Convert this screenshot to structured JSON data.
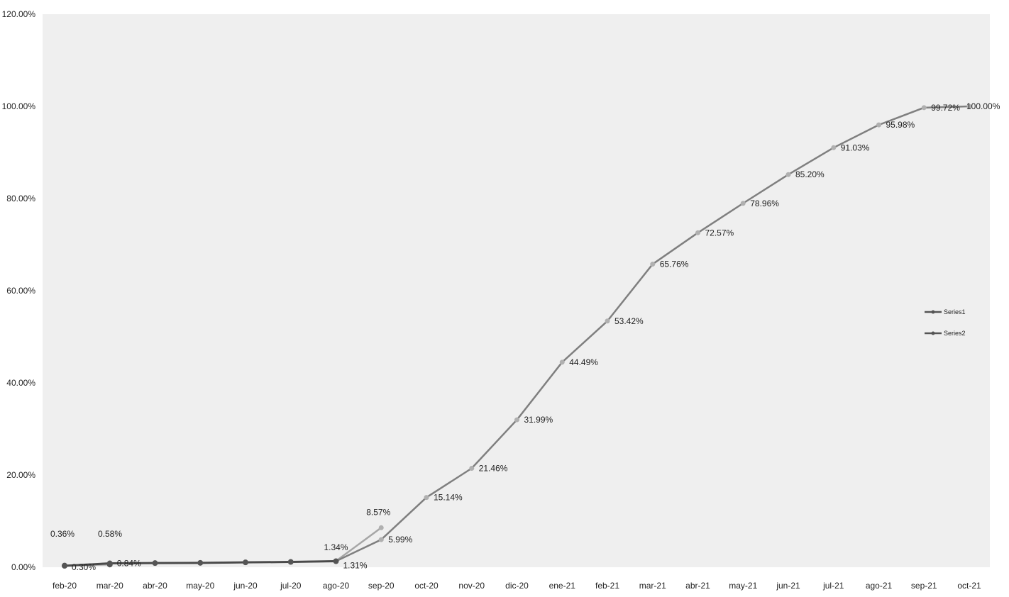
{
  "chart_data": {
    "type": "line",
    "categories": [
      "feb-20",
      "mar-20",
      "abr-20",
      "may-20",
      "jun-20",
      "jul-20",
      "ago-20",
      "sep-20",
      "oct-20",
      "nov-20",
      "dic-20",
      "ene-21",
      "feb-21",
      "mar-21",
      "abr-21",
      "may-21",
      "jun-21",
      "jul-21",
      "ago-21",
      "sep-21",
      "oct-21"
    ],
    "ylim": [
      0,
      120
    ],
    "yticks": [
      "0.00%",
      "20.00%",
      "40.00%",
      "60.00%",
      "80.00%",
      "100.00%",
      "120.00%"
    ],
    "ytick_values": [
      0,
      20,
      40,
      60,
      80,
      100,
      120
    ],
    "grid": false,
    "legend_position": "right",
    "series": [
      {
        "name": "Series1",
        "color": "#a6a6a6",
        "values": [
          0.36,
          0.58,
          null,
          null,
          null,
          null,
          1.34,
          8.57,
          null,
          null,
          null,
          null,
          null,
          null,
          null,
          null,
          null,
          null,
          null,
          null,
          null
        ],
        "labels": [
          "0.36%",
          "0.58%",
          "",
          "",
          "",
          "",
          "1.34%",
          "8.57%",
          "",
          "",
          "",
          "",
          "",
          "",
          "",
          "",
          "",
          "",
          "",
          "",
          ""
        ]
      },
      {
        "name": "Series2",
        "color": "#7f7f7f",
        "values": [
          0.3,
          0.84,
          0.9,
          0.95,
          1.05,
          1.15,
          1.31,
          5.99,
          15.14,
          21.46,
          31.99,
          44.49,
          53.42,
          65.76,
          72.57,
          78.96,
          85.2,
          91.03,
          95.98,
          99.72,
          100.0
        ],
        "labels": [
          "0.30%",
          "0.84%",
          "",
          "",
          "",
          "",
          "1.31%",
          "5.99%",
          "15.14%",
          "21.46%",
          "31.99%",
          "44.49%",
          "53.42%",
          "65.76%",
          "72.57%",
          "78.96%",
          "85.20%",
          "91.03%",
          "95.98%",
          "99.72%",
          "100.00%"
        ]
      }
    ],
    "dark_segment": {
      "color": "#4a4a4a",
      "from_index": 0,
      "to_index": 6
    }
  }
}
